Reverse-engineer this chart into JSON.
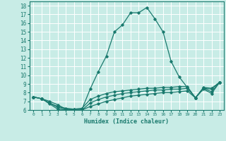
{
  "title": "",
  "xlabel": "Humidex (Indice chaleur)",
  "ylabel": "",
  "bg_color": "#c8ece6",
  "line_color": "#1a7a6e",
  "grid_color": "#ffffff",
  "xlim": [
    -0.5,
    23.5
  ],
  "ylim": [
    6,
    18.5
  ],
  "xticks": [
    0,
    1,
    2,
    3,
    4,
    5,
    6,
    7,
    8,
    9,
    10,
    11,
    12,
    13,
    14,
    15,
    16,
    17,
    18,
    19,
    20,
    21,
    22,
    23
  ],
  "yticks": [
    6,
    7,
    8,
    9,
    10,
    11,
    12,
    13,
    14,
    15,
    16,
    17,
    18
  ],
  "lines": [
    {
      "x": [
        0,
        1,
        2,
        3,
        4,
        5,
        6,
        7,
        8,
        9,
        10,
        11,
        12,
        13,
        14,
        15,
        16,
        17,
        18,
        19,
        20,
        21,
        22,
        23
      ],
      "y": [
        7.5,
        7.3,
        7.0,
        6.6,
        6.1,
        6.1,
        6.1,
        8.4,
        10.4,
        12.2,
        15.0,
        15.8,
        17.2,
        17.2,
        17.8,
        16.5,
        15.0,
        11.6,
        9.8,
        8.6,
        7.4,
        8.5,
        8.4,
        9.2
      ]
    },
    {
      "x": [
        0,
        1,
        2,
        3,
        4,
        5,
        6,
        7,
        8,
        9,
        10,
        11,
        12,
        13,
        14,
        15,
        16,
        17,
        18,
        19,
        20,
        21,
        22,
        23
      ],
      "y": [
        7.5,
        7.3,
        6.8,
        6.4,
        6.2,
        6.1,
        6.2,
        7.2,
        7.6,
        7.9,
        8.1,
        8.2,
        8.3,
        8.4,
        8.5,
        8.5,
        8.6,
        8.6,
        8.7,
        8.7,
        7.4,
        8.6,
        8.5,
        9.2
      ]
    },
    {
      "x": [
        0,
        1,
        2,
        3,
        4,
        5,
        6,
        7,
        8,
        9,
        10,
        11,
        12,
        13,
        14,
        15,
        16,
        17,
        18,
        19,
        20,
        21,
        22,
        23
      ],
      "y": [
        7.5,
        7.3,
        6.8,
        6.3,
        6.1,
        6.0,
        6.0,
        6.8,
        7.2,
        7.5,
        7.7,
        7.9,
        8.0,
        8.1,
        8.2,
        8.3,
        8.3,
        8.4,
        8.4,
        8.5,
        7.4,
        8.5,
        8.1,
        9.2
      ]
    },
    {
      "x": [
        0,
        1,
        2,
        3,
        4,
        5,
        6,
        7,
        8,
        9,
        10,
        11,
        12,
        13,
        14,
        15,
        16,
        17,
        18,
        19,
        20,
        21,
        22,
        23
      ],
      "y": [
        7.5,
        7.3,
        6.7,
        6.1,
        6.0,
        6.0,
        6.0,
        6.4,
        6.7,
        7.0,
        7.2,
        7.4,
        7.6,
        7.7,
        7.8,
        7.9,
        8.0,
        8.0,
        8.1,
        8.2,
        7.4,
        8.4,
        7.9,
        9.2
      ]
    }
  ]
}
